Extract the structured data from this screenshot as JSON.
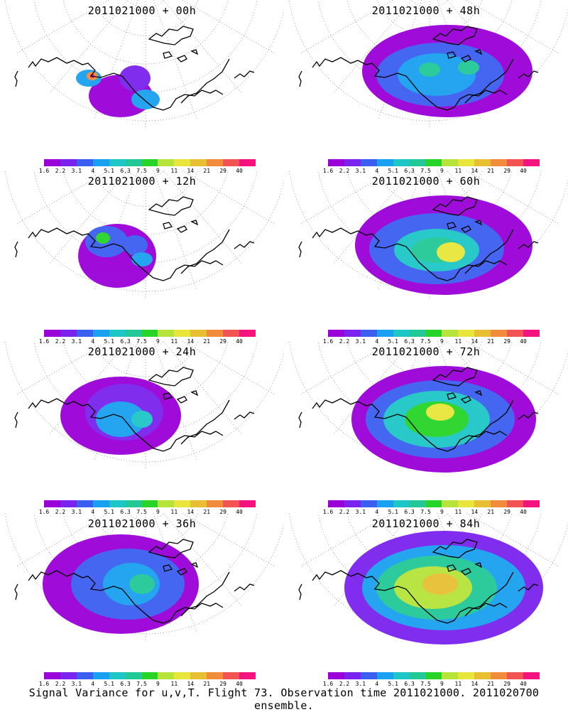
{
  "caption": "Signal Variance for u,v,T. Flight 73. Observation time 2011021000. 2011020700 ensemble.",
  "colorbar": {
    "labels": [
      "1.6",
      "2.2",
      "3.1",
      "4",
      "5.1",
      "6.3",
      "7.5",
      "9",
      "11",
      "14",
      "21",
      "29",
      "40"
    ],
    "colors": [
      "#9a00d8",
      "#7a22ee",
      "#3b5ef0",
      "#1aa0f0",
      "#1ec7c7",
      "#22c997",
      "#28d428",
      "#b6e43a",
      "#e8e63a",
      "#e8bf33",
      "#f08c3a",
      "#f25454",
      "#f5147f"
    ]
  },
  "panels": [
    {
      "title": "2011021000 + 00h",
      "lead": 0
    },
    {
      "title": "2011021000 + 48h",
      "lead": 48
    },
    {
      "title": "2011021000 + 12h",
      "lead": 12
    },
    {
      "title": "2011021000 + 60h",
      "lead": 60
    },
    {
      "title": "2011021000 + 24h",
      "lead": 24
    },
    {
      "title": "2011021000 + 72h",
      "lead": 72
    },
    {
      "title": "2011021000 + 36h",
      "lead": 36
    },
    {
      "title": "2011021000 + 84h",
      "lead": 84
    }
  ]
}
